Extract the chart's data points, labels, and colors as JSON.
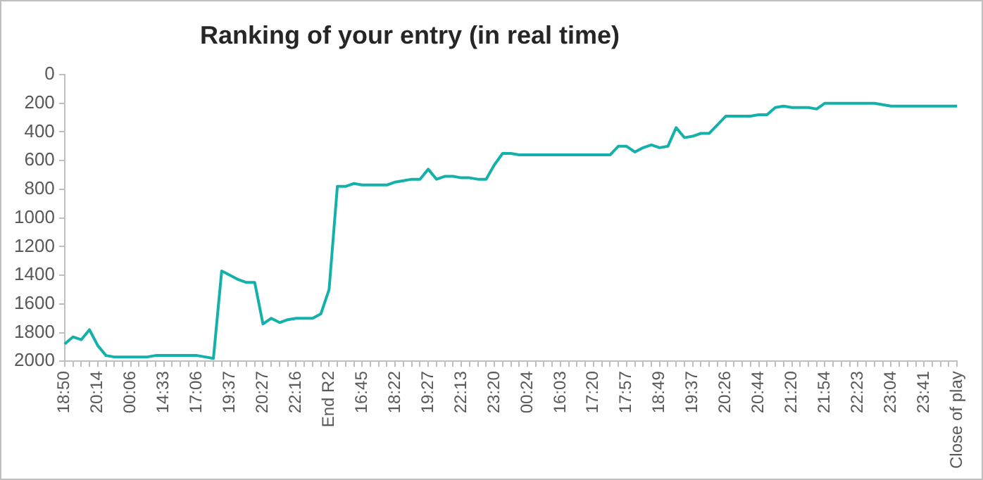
{
  "chart_data": {
    "type": "line",
    "title": "Ranking of your entry (in real time)",
    "categories": [
      "18:50",
      null,
      null,
      null,
      "20:14",
      null,
      null,
      null,
      "00:06",
      null,
      null,
      null,
      "14:33",
      null,
      null,
      null,
      "17:06",
      null,
      null,
      null,
      "19:37",
      null,
      null,
      null,
      "20:27",
      null,
      null,
      null,
      "22:16",
      null,
      null,
      null,
      "End R2",
      null,
      null,
      null,
      "16:45",
      null,
      null,
      null,
      "18:22",
      null,
      null,
      null,
      "19:27",
      null,
      null,
      null,
      "22:13",
      null,
      null,
      null,
      "23:20",
      null,
      null,
      null,
      "00:24",
      null,
      null,
      null,
      "16:03",
      null,
      null,
      null,
      "17:20",
      null,
      null,
      null,
      "17:57",
      null,
      null,
      null,
      "18:49",
      null,
      null,
      null,
      "19:37",
      null,
      null,
      null,
      "20:26",
      null,
      null,
      null,
      "20:44",
      null,
      null,
      null,
      "21:20",
      null,
      null,
      null,
      "21:54",
      null,
      null,
      null,
      "22:23",
      null,
      null,
      null,
      "23:04",
      null,
      null,
      null,
      "23:41",
      null,
      null,
      null,
      "Close of play"
    ],
    "series": [
      {
        "color": "#14b1ab",
        "values": [
          1880,
          1830,
          1850,
          1780,
          1890,
          1960,
          1970,
          1970,
          1970,
          1970,
          1970,
          1960,
          1960,
          1960,
          1960,
          1960,
          1960,
          1970,
          1980,
          1370,
          1400,
          1430,
          1450,
          1450,
          1740,
          1700,
          1730,
          1710,
          1700,
          1700,
          1700,
          1670,
          1500,
          780,
          780,
          760,
          770,
          770,
          770,
          770,
          750,
          740,
          730,
          730,
          660,
          730,
          710,
          710,
          720,
          720,
          730,
          730,
          630,
          550,
          550,
          560,
          560,
          560,
          560,
          560,
          560,
          560,
          560,
          560,
          560,
          560,
          560,
          500,
          500,
          540,
          510,
          490,
          510,
          500,
          370,
          440,
          430,
          410,
          410,
          350,
          290,
          290,
          290,
          290,
          280,
          280,
          230,
          220,
          230,
          230,
          230,
          240,
          200,
          200,
          200,
          200,
          200,
          200,
          200,
          210,
          220,
          220,
          220,
          220,
          220,
          220,
          220,
          220,
          220
        ]
      }
    ],
    "ylim": [
      2000,
      0
    ],
    "yticks": [
      0,
      200,
      400,
      600,
      800,
      1000,
      1200,
      1400,
      1600,
      1800,
      2000
    ],
    "grid": false,
    "legend": false,
    "marker": "none",
    "line_style": "solid"
  }
}
